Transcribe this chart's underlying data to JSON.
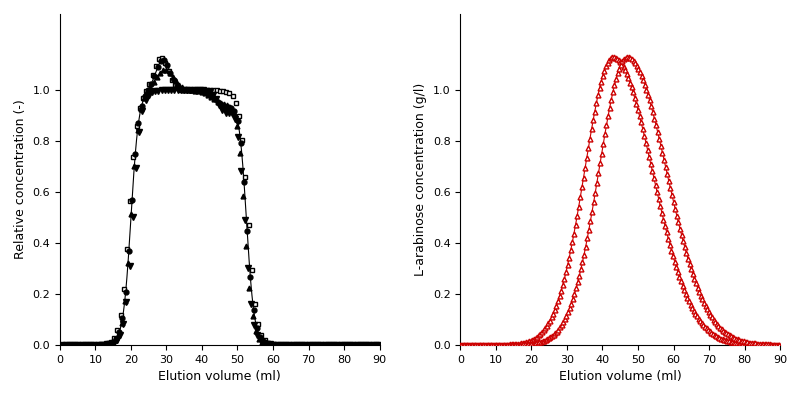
{
  "left_xlabel": "Elution volume (ml)",
  "left_ylabel": "Relative concentration (-)",
  "right_xlabel": "Elution volume (ml)",
  "right_ylabel": "L-arabinose concentration (g/l)",
  "left_xlim": [
    0,
    90
  ],
  "left_ylim": [
    0,
    1.3
  ],
  "right_xlim": [
    0,
    90
  ],
  "right_ylim": [
    0,
    1.3
  ],
  "left_xticks": [
    0,
    10,
    20,
    30,
    40,
    50,
    60,
    70,
    80,
    90
  ],
  "right_xticks": [
    0,
    10,
    20,
    30,
    40,
    50,
    60,
    70,
    80,
    90
  ],
  "left_yticks": [
    0,
    0.2,
    0.4,
    0.6,
    0.8,
    1.0
  ],
  "right_yticks": [
    0,
    0.2,
    0.4,
    0.6,
    0.8,
    1.0
  ],
  "color_left": "#000000",
  "color_right": "#cc0000",
  "marker_size": 3.5,
  "line_width": 0.8,
  "figsize": [
    8.01,
    3.97
  ],
  "dpi": 100
}
